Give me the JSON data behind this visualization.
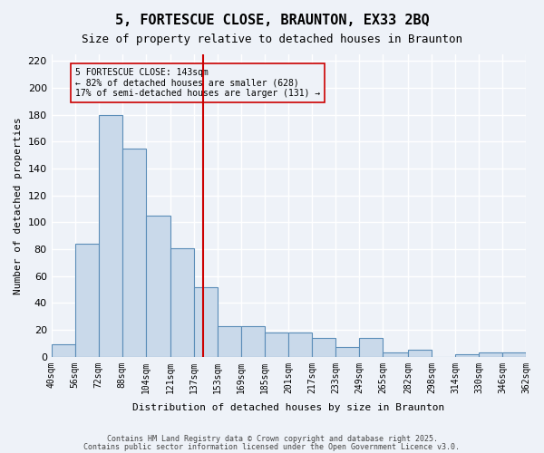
{
  "title": "5, FORTESCUE CLOSE, BRAUNTON, EX33 2BQ",
  "subtitle": "Size of property relative to detached houses in Braunton",
  "xlabel": "Distribution of detached houses by size in Braunton",
  "ylabel": "Number of detached properties",
  "bin_labels": [
    "40sqm",
    "56sqm",
    "72sqm",
    "88sqm",
    "104sqm",
    "121sqm",
    "137sqm",
    "153sqm",
    "169sqm",
    "185sqm",
    "201sqm",
    "217sqm",
    "233sqm",
    "249sqm",
    "265sqm",
    "282sqm",
    "298sqm",
    "314sqm",
    "330sqm",
    "346sqm",
    "362sqm"
  ],
  "bin_edges": [
    40,
    56,
    72,
    88,
    104,
    121,
    137,
    153,
    169,
    185,
    201,
    217,
    233,
    249,
    265,
    282,
    298,
    314,
    330,
    346,
    362
  ],
  "bar_heights": [
    9,
    84,
    180,
    155,
    105,
    81,
    52,
    23,
    23,
    18,
    18,
    14,
    7,
    14,
    3,
    5,
    0,
    2,
    3,
    3
  ],
  "bar_color": "#c9d9ea",
  "bar_edge_color": "#5b8db8",
  "vline_x": 143,
  "vline_color": "#cc0000",
  "annotation_text": "5 FORTESCUE CLOSE: 143sqm\n← 82% of detached houses are smaller (628)\n17% of semi-detached houses are larger (131) →",
  "annotation_box_color": "#cc0000",
  "ylim": [
    0,
    225
  ],
  "yticks": [
    0,
    20,
    40,
    60,
    80,
    100,
    120,
    140,
    160,
    180,
    200,
    220
  ],
  "background_color": "#eef2f8",
  "grid_color": "#ffffff",
  "footer_line1": "Contains HM Land Registry data © Crown copyright and database right 2025.",
  "footer_line2": "Contains public sector information licensed under the Open Government Licence v3.0."
}
